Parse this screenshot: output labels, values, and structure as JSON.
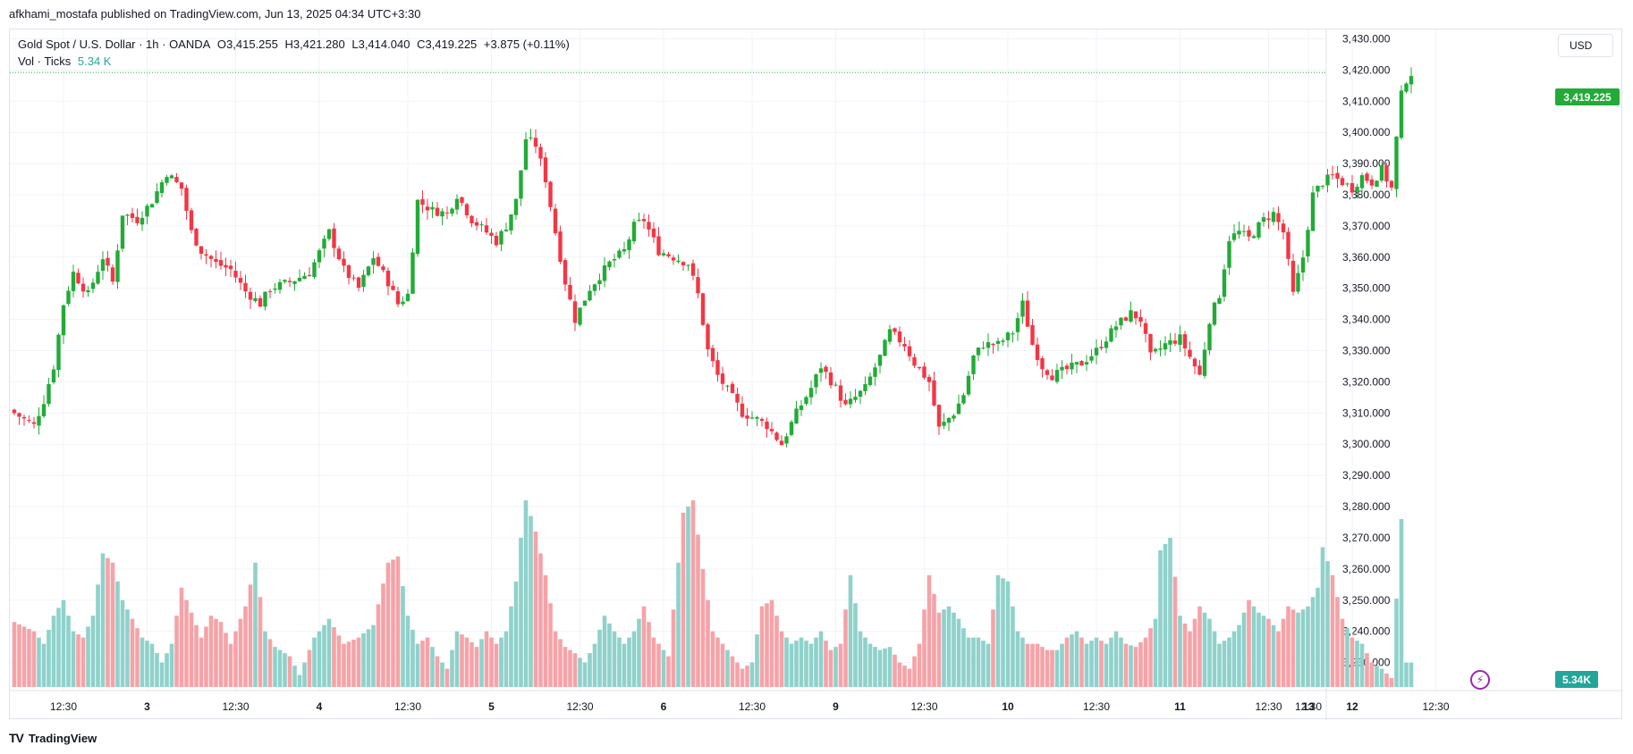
{
  "publisher_line": "afkhami_mostafa published on TradingView.com, Jun 13, 2025 04:34 UTC+3:30",
  "legend": {
    "symbol": "Gold Spot / U.S. Dollar · 1h · OANDA",
    "open": "O3,415.255",
    "high": "H3,421.280",
    "low": "L3,414.040",
    "close": "C3,419.225",
    "change": "+3.875 (+0.11%)",
    "vol_label": "Vol · Ticks",
    "vol_value": "5.34 K"
  },
  "currency": "USD",
  "last_price_label": "3,419.225",
  "last_volume_label": "5.34K",
  "brand": "TradingView",
  "brand_logo": "TV",
  "colors": {
    "up": "#22ab37",
    "down": "#f23645",
    "vol_up": "#8fd1cb",
    "vol_down": "#f5a3a8",
    "grid": "#f0f3fa",
    "last_line": "#22ab37"
  },
  "chart_data": {
    "type": "candlestick",
    "title": "Gold Spot / U.S. Dollar · 1h · OANDA",
    "y_axis": {
      "ticks": [
        "3,430.000",
        "3,420.000",
        "3,410.000",
        "3,400.000",
        "3,390.000",
        "3,380.000",
        "3,370.000",
        "3,360.000",
        "3,350.000",
        "3,340.000",
        "3,330.000",
        "3,320.000",
        "3,310.000",
        "3,300.000",
        "3,290.000",
        "3,280.000",
        "3,270.000",
        "3,260.000",
        "3,250.000",
        "3,240.000",
        "3,230.000"
      ],
      "range": [
        3221,
        3433
      ]
    },
    "x_axis": {
      "ticks": [
        "12:30",
        "3",
        "12:30",
        "4",
        "12:30",
        "5",
        "12:30",
        "6",
        "12:30",
        "9",
        "12:30",
        "10",
        "12:30",
        "11",
        "12:30",
        "12",
        "12:30",
        "13",
        "12:30"
      ]
    },
    "last_price": 3419.225,
    "last_volume": "5.34K",
    "anchors": [
      [
        0,
        3310
      ],
      [
        4,
        3306
      ],
      [
        6,
        3314
      ],
      [
        8,
        3325
      ],
      [
        10,
        3345
      ],
      [
        12,
        3355
      ],
      [
        15,
        3348
      ],
      [
        18,
        3360
      ],
      [
        20,
        3352
      ],
      [
        22,
        3374
      ],
      [
        25,
        3372
      ],
      [
        28,
        3378
      ],
      [
        31,
        3387
      ],
      [
        34,
        3382
      ],
      [
        36,
        3368
      ],
      [
        38,
        3362
      ],
      [
        41,
        3358
      ],
      [
        44,
        3356
      ],
      [
        47,
        3349
      ],
      [
        50,
        3345
      ],
      [
        52,
        3350
      ],
      [
        56,
        3352
      ],
      [
        60,
        3355
      ],
      [
        64,
        3368
      ],
      [
        67,
        3356
      ],
      [
        70,
        3350
      ],
      [
        73,
        3360
      ],
      [
        76,
        3352
      ],
      [
        78,
        3345
      ],
      [
        80,
        3348
      ],
      [
        82,
        3378
      ],
      [
        85,
        3375
      ],
      [
        88,
        3374
      ],
      [
        90,
        3380
      ],
      [
        93,
        3372
      ],
      [
        96,
        3368
      ],
      [
        98,
        3365
      ],
      [
        100,
        3370
      ],
      [
        102,
        3378
      ],
      [
        104,
        3398
      ],
      [
        106,
        3396
      ],
      [
        108,
        3385
      ],
      [
        110,
        3368
      ],
      [
        112,
        3352
      ],
      [
        114,
        3340
      ],
      [
        117,
        3350
      ],
      [
        121,
        3358
      ],
      [
        124,
        3362
      ],
      [
        126,
        3370
      ],
      [
        128,
        3372
      ],
      [
        131,
        3362
      ],
      [
        134,
        3360
      ],
      [
        137,
        3358
      ],
      [
        139,
        3348
      ],
      [
        141,
        3330
      ],
      [
        143,
        3322
      ],
      [
        146,
        3315
      ],
      [
        148,
        3310
      ],
      [
        151,
        3308
      ],
      [
        153,
        3306
      ],
      [
        156,
        3300
      ],
      [
        159,
        3310
      ],
      [
        162,
        3318
      ],
      [
        164,
        3325
      ],
      [
        167,
        3318
      ],
      [
        169,
        3312
      ],
      [
        171,
        3315
      ],
      [
        173,
        3318
      ],
      [
        176,
        3328
      ],
      [
        178,
        3336
      ],
      [
        181,
        3332
      ],
      [
        183,
        3326
      ],
      [
        186,
        3320
      ],
      [
        188,
        3305
      ],
      [
        191,
        3310
      ],
      [
        193,
        3316
      ],
      [
        195,
        3328
      ],
      [
        197,
        3332
      ],
      [
        200,
        3332
      ],
      [
        203,
        3336
      ],
      [
        205,
        3345
      ],
      [
        207,
        3332
      ],
      [
        209,
        3325
      ],
      [
        211,
        3322
      ],
      [
        214,
        3324
      ],
      [
        217,
        3326
      ],
      [
        220,
        3330
      ],
      [
        222,
        3334
      ],
      [
        224,
        3338
      ],
      [
        227,
        3342
      ],
      [
        229,
        3340
      ],
      [
        231,
        3328
      ],
      [
        234,
        3332
      ],
      [
        237,
        3334
      ],
      [
        239,
        3328
      ],
      [
        241,
        3322
      ],
      [
        243,
        3340
      ],
      [
        245,
        3348
      ],
      [
        247,
        3366
      ],
      [
        249,
        3368
      ],
      [
        251,
        3366
      ],
      [
        254,
        3372
      ],
      [
        256,
        3374
      ],
      [
        258,
        3368
      ],
      [
        260,
        3348
      ],
      [
        262,
        3360
      ],
      [
        264,
        3380
      ],
      [
        266,
        3384
      ],
      [
        268,
        3386
      ],
      [
        270,
        3384
      ],
      [
        272,
        3382
      ],
      [
        274,
        3386
      ],
      [
        276,
        3384
      ],
      [
        278,
        3388
      ],
      [
        280,
        3382
      ],
      [
        281,
        3398
      ],
      [
        282,
        3412
      ],
      [
        283,
        3417
      ],
      [
        284,
        3419
      ]
    ],
    "volume_anchors": [
      [
        0,
        3243
      ],
      [
        4,
        3240
      ],
      [
        6,
        3236
      ],
      [
        8,
        3245
      ],
      [
        10,
        3250
      ],
      [
        12,
        3240
      ],
      [
        14,
        3238
      ],
      [
        16,
        3245
      ],
      [
        18,
        3265
      ],
      [
        20,
        3262
      ],
      [
        22,
        3250
      ],
      [
        24,
        3244
      ],
      [
        26,
        3238
      ],
      [
        28,
        3236
      ],
      [
        30,
        3230
      ],
      [
        32,
        3236
      ],
      [
        34,
        3254
      ],
      [
        36,
        3246
      ],
      [
        38,
        3238
      ],
      [
        40,
        3245
      ],
      [
        42,
        3243
      ],
      [
        44,
        3236
      ],
      [
        47,
        3248
      ],
      [
        49,
        3262
      ],
      [
        51,
        3240
      ],
      [
        53,
        3235
      ],
      [
        56,
        3232
      ],
      [
        58,
        3226
      ],
      [
        61,
        3238
      ],
      [
        64,
        3244
      ],
      [
        67,
        3236
      ],
      [
        70,
        3238
      ],
      [
        73,
        3242
      ],
      [
        76,
        3262
      ],
      [
        78,
        3264
      ],
      [
        80,
        3245
      ],
      [
        82,
        3236
      ],
      [
        84,
        3238
      ],
      [
        86,
        3232
      ],
      [
        88,
        3228
      ],
      [
        90,
        3240
      ],
      [
        92,
        3238
      ],
      [
        94,
        3235
      ],
      [
        96,
        3240
      ],
      [
        98,
        3236
      ],
      [
        100,
        3240
      ],
      [
        102,
        3256
      ],
      [
        103,
        3270
      ],
      [
        104,
        3282
      ],
      [
        106,
        3272
      ],
      [
        108,
        3258
      ],
      [
        110,
        3240
      ],
      [
        112,
        3235
      ],
      [
        114,
        3233
      ],
      [
        116,
        3230
      ],
      [
        118,
        3236
      ],
      [
        120,
        3245
      ],
      [
        122,
        3240
      ],
      [
        124,
        3236
      ],
      [
        126,
        3240
      ],
      [
        128,
        3248
      ],
      [
        130,
        3238
      ],
      [
        133,
        3232
      ],
      [
        135,
        3262
      ],
      [
        136,
        3278
      ],
      [
        138,
        3282
      ],
      [
        140,
        3260
      ],
      [
        142,
        3240
      ],
      [
        144,
        3236
      ],
      [
        146,
        3232
      ],
      [
        148,
        3228
      ],
      [
        150,
        3230
      ],
      [
        152,
        3248
      ],
      [
        154,
        3250
      ],
      [
        156,
        3240
      ],
      [
        158,
        3236
      ],
      [
        160,
        3238
      ],
      [
        162,
        3236
      ],
      [
        164,
        3240
      ],
      [
        166,
        3234
      ],
      [
        168,
        3236
      ],
      [
        170,
        3258
      ],
      [
        172,
        3240
      ],
      [
        174,
        3236
      ],
      [
        176,
        3234
      ],
      [
        178,
        3235
      ],
      [
        180,
        3230
      ],
      [
        182,
        3228
      ],
      [
        184,
        3236
      ],
      [
        186,
        3258
      ],
      [
        188,
        3246
      ],
      [
        190,
        3248
      ],
      [
        192,
        3244
      ],
      [
        194,
        3238
      ],
      [
        196,
        3238
      ],
      [
        198,
        3236
      ],
      [
        200,
        3258
      ],
      [
        202,
        3256
      ],
      [
        204,
        3240
      ],
      [
        206,
        3236
      ],
      [
        208,
        3236
      ],
      [
        210,
        3234
      ],
      [
        212,
        3234
      ],
      [
        214,
        3238
      ],
      [
        216,
        3240
      ],
      [
        218,
        3236
      ],
      [
        220,
        3238
      ],
      [
        222,
        3236
      ],
      [
        224,
        3240
      ],
      [
        226,
        3236
      ],
      [
        228,
        3235
      ],
      [
        230,
        3238
      ],
      [
        232,
        3244
      ],
      [
        233,
        3266
      ],
      [
        235,
        3270
      ],
      [
        237,
        3245
      ],
      [
        239,
        3240
      ],
      [
        241,
        3248
      ],
      [
        243,
        3244
      ],
      [
        245,
        3236
      ],
      [
        247,
        3238
      ],
      [
        249,
        3242
      ],
      [
        251,
        3250
      ],
      [
        253,
        3246
      ],
      [
        255,
        3244
      ],
      [
        257,
        3240
      ],
      [
        259,
        3248
      ],
      [
        261,
        3246
      ],
      [
        263,
        3248
      ],
      [
        265,
        3254
      ],
      [
        266,
        3267
      ],
      [
        268,
        3258
      ],
      [
        270,
        3244
      ],
      [
        272,
        3238
      ],
      [
        274,
        3236
      ],
      [
        276,
        3230
      ],
      [
        278,
        3228
      ],
      [
        280,
        3225
      ],
      [
        282,
        3276
      ],
      [
        283,
        3230
      ]
    ]
  }
}
